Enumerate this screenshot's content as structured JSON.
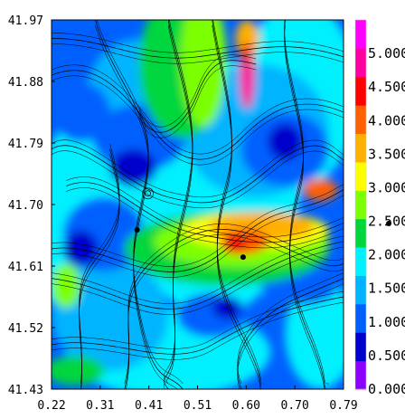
{
  "chart_data": {
    "type": "heatmap",
    "overlay": "streamlines",
    "x_ticks": [
      "0.22",
      "0.31",
      "0.41",
      "0.51",
      "0.60",
      "0.70",
      "0.79"
    ],
    "y_ticks": [
      "41.97",
      "41.88",
      "41.79",
      "41.70",
      "41.61",
      "41.52",
      "41.43"
    ],
    "xlim": [
      0.22,
      0.79
    ],
    "ylim": [
      41.43,
      41.97
    ],
    "colorbar": {
      "labels": [
        "5.000",
        "4.500",
        "4.000",
        "3.500",
        "3.000",
        "2.500",
        "2.000",
        "1.500",
        "1.000",
        "0.500",
        "0.000"
      ],
      "range": [
        0.0,
        5.5
      ],
      "colors": [
        "#8c00ff",
        "#0000cc",
        "#0060ff",
        "#00b4ff",
        "#00f0ff",
        "#00d63c",
        "#7cff00",
        "#ffff00",
        "#ffb000",
        "#ff6000",
        "#ff0000",
        "#ff00a0",
        "#ff00ff"
      ]
    },
    "markers": [
      {
        "x": 0.387,
        "y": 41.663
      },
      {
        "x": 0.594,
        "y": 41.623
      }
    ],
    "grid": false,
    "legend": "right"
  }
}
